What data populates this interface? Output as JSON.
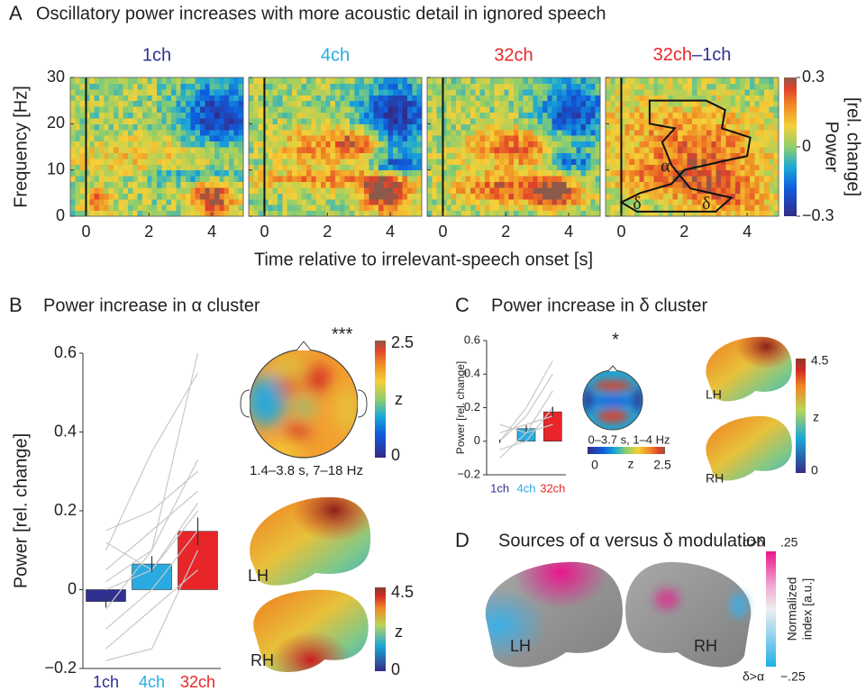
{
  "panelA": {
    "letter": "A",
    "title": "Oscillatory power increases with more acoustic detail in ignored speech",
    "maps": [
      {
        "title": "1ch",
        "color": "#2e3192"
      },
      {
        "title": "4ch",
        "color": "#29abe2"
      },
      {
        "title": "32ch",
        "color": "#e8262a"
      },
      {
        "title_parts": [
          "32ch",
          "–1ch"
        ],
        "colors": [
          "#e8262a",
          "#2e3192"
        ]
      }
    ],
    "ylabel": "Frequency [Hz]",
    "xlabel": "Time relative to irrelevant-speech onset [s]",
    "xlim": [
      -0.5,
      5
    ],
    "ylim": [
      0,
      30
    ],
    "xticks": [
      0,
      2,
      4
    ],
    "yticks": [
      0,
      10,
      20,
      30
    ],
    "annotations": [
      "α",
      "δ",
      "δ"
    ],
    "colorbar": {
      "lim": [
        -0.3,
        0.3
      ],
      "ticks": [
        {
          "value": 0.3,
          "label": "0.3"
        },
        0,
        {
          "value": -0.3,
          "label": "−0.3"
        }
      ],
      "label": [
        "Power",
        "[rel. change]"
      ]
    }
  },
  "chart_data": [
    {
      "type": "bar",
      "letter": "B",
      "title": "Power increase in α cluster",
      "ylabel": "Power [rel. change]",
      "categories": [
        "1ch",
        "4ch",
        "32ch"
      ],
      "colors": [
        "#2e3192",
        "#29abe2",
        "#e8262a"
      ],
      "values": [
        -0.03,
        0.065,
        0.148
      ],
      "errors": [
        0.015,
        0.02,
        0.035
      ],
      "subjects": [
        [
          -0.05,
          0.1,
          0.6
        ],
        [
          0.15,
          0.2,
          0.3
        ],
        [
          0.1,
          0.35,
          0.55
        ],
        [
          0,
          0.05,
          0.2
        ],
        [
          -0.1,
          0,
          0.15
        ],
        [
          0.05,
          0.15,
          0.25
        ],
        [
          -0.15,
          -0.05,
          0.05
        ],
        [
          0.12,
          0.05,
          0.22
        ],
        [
          -0.18,
          -0.15,
          0.1
        ],
        [
          0.02,
          0.1,
          0.33
        ]
      ],
      "ylim": [
        -0.2,
        0.6
      ],
      "yticks": [
        {
          "value": -0.2,
          "label": "−0.2"
        },
        0,
        0.2,
        0.4,
        0.6
      ]
    },
    {
      "type": "bar",
      "letter": "C",
      "title": "Power increase in δ cluster",
      "ylabel": "Power [rel. change]",
      "categories": [
        "1ch",
        "4ch",
        "32ch"
      ],
      "colors": [
        "#2e3192",
        "#29abe2",
        "#e8262a"
      ],
      "values": [
        0,
        0.075,
        0.175
      ],
      "errors": [
        0.01,
        0.02,
        0.03
      ],
      "subjects": [
        [
          -0.1,
          0.05,
          0.3
        ],
        [
          0,
          0.2,
          0.48
        ],
        [
          0.05,
          0.1,
          0.15
        ],
        [
          -0.05,
          0,
          0.2
        ],
        [
          0.1,
          0.05,
          0.1
        ],
        [
          0,
          0.15,
          0.4
        ]
      ],
      "ylim": [
        -0.2,
        0.6
      ],
      "yticks": [
        {
          "value": -0.2,
          "label": "−0.2"
        },
        0,
        0.2,
        0.4,
        0.6
      ]
    }
  ],
  "panelB_extra": {
    "significance": "***",
    "window": "1.4–3.8 s, 7–18 Hz",
    "topo_colorbar": {
      "top": "2.5",
      "mid": "z",
      "bottom": "0"
    },
    "brain_colorbar": {
      "top": "4.5",
      "mid": "z",
      "bottom": "0"
    },
    "hemispheres": [
      "LH",
      "RH"
    ]
  },
  "panelC_extra": {
    "significance": "*",
    "window": "0–3.7 s, 1–4 Hz",
    "topo_colorbar": {
      "left": "0",
      "mid": "z",
      "right": "2.5"
    },
    "brain_colorbar": {
      "top": "4.5",
      "mid": "z",
      "bottom": "0"
    },
    "hemispheres": [
      "LH",
      "RH"
    ]
  },
  "panelD": {
    "letter": "D",
    "title": "Sources of α versus δ modulation",
    "colorbar": {
      "top_label": "α>δ",
      "top": ".25",
      "bottom_label": "δ>α",
      "bottom": "−.25",
      "label": [
        "Normalized",
        "index [a.u.]"
      ]
    },
    "hemispheres": [
      "LH",
      "RH"
    ]
  }
}
